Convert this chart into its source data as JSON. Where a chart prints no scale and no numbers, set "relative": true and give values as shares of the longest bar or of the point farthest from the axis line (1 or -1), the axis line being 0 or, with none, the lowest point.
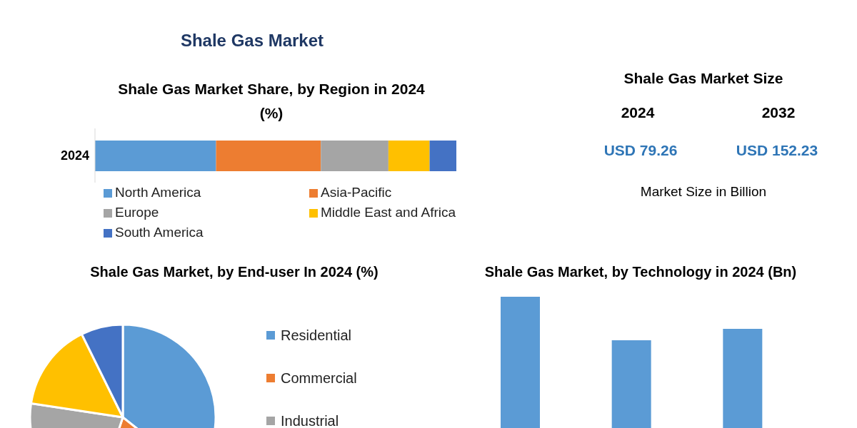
{
  "chart_data": [
    {
      "type": "bar",
      "title": "Shale Gas Market",
      "subtitle": "Shale Gas Market Share, by Region in 2024 (%)",
      "orientation": "horizontal",
      "stacked": true,
      "relative": true,
      "legend": "bottom",
      "categories": [
        "2024"
      ],
      "series": [
        {
          "name": "North America",
          "color": "#5b9bd5",
          "values": [
            0.335
          ]
        },
        {
          "name": "Asia-Pacific",
          "color": "#ed7d31",
          "values": [
            0.29
          ]
        },
        {
          "name": "Europe",
          "color": "#a5a5a5",
          "values": [
            0.187
          ]
        },
        {
          "name": "Middle East and Africa",
          "color": "#ffc000",
          "values": [
            0.114
          ]
        },
        {
          "name": "South America",
          "color": "#4472c4",
          "values": [
            0.074
          ]
        }
      ]
    },
    {
      "type": "other",
      "title": "Shale Gas Market Size",
      "annotations": [
        "2024",
        "2032",
        "USD 79.26",
        "USD 152.23",
        "Market Size in Billion"
      ]
    },
    {
      "type": "pie",
      "title": "Shale Gas Market, by End-user In 2024 (%)",
      "legend": "right",
      "categories": [
        "Residential",
        "Commercial",
        "Industrial",
        null,
        null
      ],
      "values": [
        35.7,
        19.4,
        22.3,
        15.3,
        7.3
      ],
      "colors": [
        "#5b9bd5",
        "#ed7d31",
        "#a5a5a5",
        "#ffc000",
        "#4472c4"
      ]
    },
    {
      "type": "bar",
      "title": "Shale Gas Market, by Technology in 2024 (Bn)",
      "relative": true,
      "categories": [
        null,
        null,
        null
      ],
      "values": [
        1,
        0.668,
        0.755
      ],
      "color": "#5b9bd5"
    }
  ]
}
